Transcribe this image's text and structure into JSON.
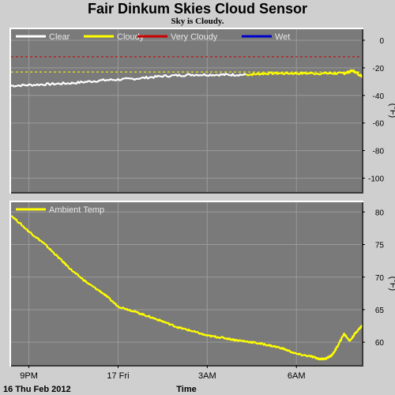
{
  "title": "Fair Dinkum Skies Cloud Sensor",
  "subtitle": "Sky is Cloudy.",
  "colors": {
    "plot_bg": "#7a7a7a",
    "page_bg": "#cfcfcf",
    "clear": "#ffffff",
    "cloudy": "#ffff00",
    "very_cloudy": "#cc0000",
    "wet": "#0000cc",
    "ambient": "#ffff00"
  },
  "x_axis": {
    "label": "Time",
    "date_label": "16 Thu Feb 2012",
    "ticks": [
      {
        "t": 0,
        "label": "9PM"
      },
      {
        "t": 3,
        "label": "17 Fri"
      },
      {
        "t": 6,
        "label": "3AM"
      },
      {
        "t": 9,
        "label": "6AM"
      }
    ]
  },
  "chart_data": [
    {
      "type": "line",
      "title": "Fair Dinkum Skies Cloud Sensor",
      "subtitle": "Sky is Cloudy.",
      "xlabel": "Time",
      "ylabel": "(°F)",
      "ylim": [
        -110,
        8
      ],
      "xlim": [
        -0.6,
        11.2
      ],
      "yticks": [
        0,
        -20,
        -40,
        -60,
        -80,
        -100
      ],
      "thresholds": [
        {
          "name": "Very Cloudy",
          "y": -12,
          "color": "#cc0000"
        },
        {
          "name": "Cloudy",
          "y": -23,
          "color": "#ffff00"
        }
      ],
      "legend": [
        "Clear",
        "Cloudy",
        "Very Cloudy",
        "Wet"
      ],
      "series": [
        {
          "name": "Clear",
          "color": "#ffffff",
          "x": [
            -0.6,
            0.5,
            1.5,
            2.5,
            3.5,
            4.5,
            5.5,
            6.5,
            7.3
          ],
          "y": [
            -33,
            -32,
            -31,
            -29,
            -28,
            -26,
            -25,
            -25,
            -25
          ]
        },
        {
          "name": "Cloudy",
          "color": "#ffff00",
          "x": [
            7.3,
            8.0,
            9.0,
            10.0,
            10.6,
            10.9,
            11.2
          ],
          "y": [
            -25,
            -24,
            -24,
            -24,
            -24,
            -22,
            -26
          ]
        }
      ]
    },
    {
      "type": "line",
      "xlabel": "Time",
      "ylabel": "(°F)",
      "ylim": [
        56.5,
        81.5
      ],
      "xlim": [
        -0.6,
        11.2
      ],
      "yticks": [
        80,
        75,
        70,
        65,
        60
      ],
      "legend": [
        "Ambient Temp"
      ],
      "series": [
        {
          "name": "Ambient Temp",
          "color": "#ffff00",
          "x": [
            -0.6,
            0.0,
            0.5,
            1.0,
            1.5,
            2.0,
            2.5,
            3.0,
            3.5,
            4.0,
            4.5,
            5.0,
            5.5,
            6.0,
            6.5,
            7.0,
            7.5,
            8.0,
            8.5,
            9.0,
            9.5,
            9.8,
            10.0,
            10.2,
            10.4,
            10.6,
            10.8,
            11.0,
            11.2
          ],
          "y": [
            79.5,
            77.0,
            75.2,
            73.0,
            70.8,
            69.0,
            67.5,
            65.5,
            64.8,
            64.0,
            63.2,
            62.3,
            61.7,
            61.0,
            60.7,
            60.3,
            60.0,
            59.6,
            59.1,
            58.2,
            57.8,
            57.4,
            57.5,
            58.0,
            59.5,
            61.3,
            60.2,
            61.5,
            62.5
          ]
        }
      ]
    }
  ]
}
